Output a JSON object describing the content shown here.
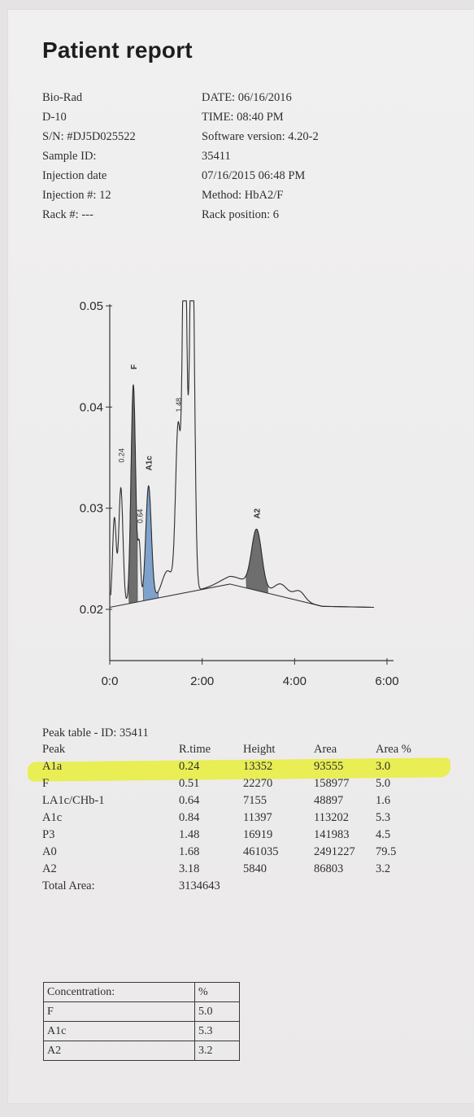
{
  "report": {
    "title": "Patient report"
  },
  "info_left": [
    "Bio-Rad",
    "D-10",
    "S/N: #DJ5D025522",
    "Sample ID:",
    "Injection date",
    "Injection #: 12",
    "Rack #: ---"
  ],
  "info_right": [
    "DATE: 06/16/2016",
    "TIME: 08:40 PM",
    "Software version: 4.20-2",
    "35411",
    "07/16/2015 06:48 PM",
    "Method: HbA2/F",
    "Rack position: 6"
  ],
  "chart_data": {
    "type": "line",
    "x_ticks": [
      "0:0",
      "2:00",
      "4:00",
      "6:00"
    ],
    "y_ticks": [
      "0.02",
      "0.03",
      "0.04",
      "0.05"
    ],
    "xlim": [
      0,
      6
    ],
    "ylim": [
      0.02,
      0.05
    ],
    "peak_labels": [
      "0.24",
      "F",
      "0.64",
      "A1c",
      "1.48",
      "A2"
    ],
    "peaks": [
      {
        "label": "0.24",
        "x": 0.24,
        "y": 0.032
      },
      {
        "label": "F",
        "x": 0.51,
        "y": 0.0422
      },
      {
        "label": "0.64",
        "x": 0.64,
        "y": 0.026
      },
      {
        "label": "A1c",
        "x": 0.84,
        "y": 0.0322
      },
      {
        "label": "1.48",
        "x": 1.48,
        "y": 0.0378
      },
      {
        "label": "A0",
        "x": 1.68,
        "y": 0.05
      },
      {
        "label": "A2",
        "x": 3.18,
        "y": 0.0277
      }
    ],
    "shaded": [
      {
        "label": "F",
        "color": "#6e6e6e"
      },
      {
        "label": "A1c",
        "color": "#7fa2cc"
      },
      {
        "label": "A2",
        "color": "#6e6e6e"
      }
    ]
  },
  "peak_table": {
    "title": "Peak table  -  ID: 35411",
    "headers": [
      "Peak",
      "R.time",
      "Height",
      "Area",
      "Area %"
    ],
    "rows": [
      [
        "A1a",
        "0.24",
        "13352",
        "93555",
        "3.0"
      ],
      [
        "F",
        "0.51",
        "22270",
        "158977",
        "5.0"
      ],
      [
        "LA1c/CHb-1",
        "0.64",
        "7155",
        "48897",
        "1.6"
      ],
      [
        "A1c",
        "0.84",
        "11397",
        "113202",
        "5.3"
      ],
      [
        "P3",
        "1.48",
        "16919",
        "141983",
        "4.5"
      ],
      [
        "A0",
        "1.68",
        "461035",
        "2491227",
        "79.5"
      ],
      [
        "A2",
        "3.18",
        "5840",
        "86803",
        "3.2"
      ]
    ],
    "total_label": "Total Area:",
    "total_value": "3134643",
    "highlight_color": "#e6ef3a"
  },
  "concentration": {
    "header_label": "Concentration:",
    "header_unit": "%",
    "rows": [
      [
        "F",
        "5.0"
      ],
      [
        "A1c",
        "5.3"
      ],
      [
        "A2",
        "3.2"
      ]
    ]
  }
}
